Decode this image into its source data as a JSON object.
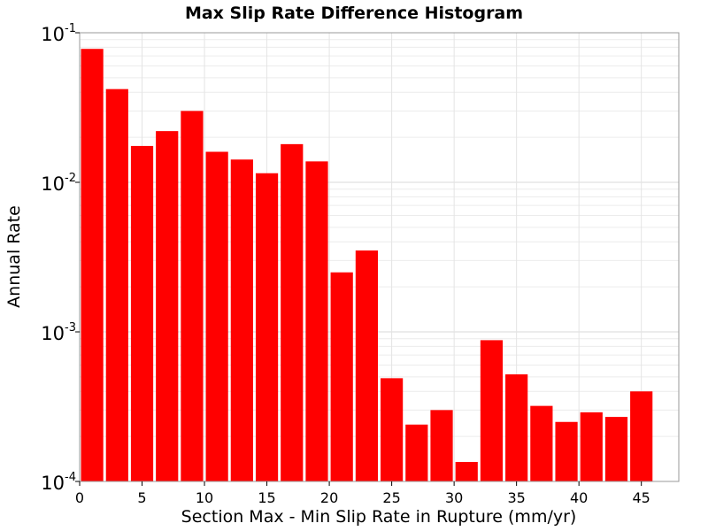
{
  "chart_data": {
    "type": "bar",
    "title": "Max Slip Rate Difference Histogram",
    "xlabel": "Section Max - Min Slip Rate in Rupture (mm/yr)",
    "ylabel": "Annual Rate",
    "y_scale": "log",
    "xlim": [
      0,
      48
    ],
    "ylim": [
      0.0001,
      0.1
    ],
    "grid": true,
    "bar_color": "#ff0000",
    "x_ticks": [
      "0",
      "5",
      "10",
      "15",
      "20",
      "25",
      "30",
      "35",
      "40",
      "45"
    ],
    "y_ticks": [
      {
        "base": "10",
        "exp": "-4"
      },
      {
        "base": "10",
        "exp": "-3"
      },
      {
        "base": "10",
        "exp": "-2"
      },
      {
        "base": "10",
        "exp": "-1"
      }
    ],
    "bin_width": 2,
    "bins": [
      {
        "x": 1,
        "y": 0.078
      },
      {
        "x": 3,
        "y": 0.042
      },
      {
        "x": 5,
        "y": 0.0175
      },
      {
        "x": 7,
        "y": 0.022
      },
      {
        "x": 9,
        "y": 0.03
      },
      {
        "x": 11,
        "y": 0.016
      },
      {
        "x": 13,
        "y": 0.0142
      },
      {
        "x": 15,
        "y": 0.0115
      },
      {
        "x": 17,
        "y": 0.018
      },
      {
        "x": 19,
        "y": 0.0138
      },
      {
        "x": 21,
        "y": 0.0025
      },
      {
        "x": 23,
        "y": 0.0035
      },
      {
        "x": 25,
        "y": 0.00049
      },
      {
        "x": 27,
        "y": 0.00024
      },
      {
        "x": 29,
        "y": 0.0003
      },
      {
        "x": 31,
        "y": 0.000135
      },
      {
        "x": 33,
        "y": 0.00088
      },
      {
        "x": 35,
        "y": 0.00052
      },
      {
        "x": 37,
        "y": 0.00032
      },
      {
        "x": 39,
        "y": 0.00025
      },
      {
        "x": 41,
        "y": 0.00029
      },
      {
        "x": 43,
        "y": 0.00027
      },
      {
        "x": 45,
        "y": 0.0004
      }
    ]
  }
}
